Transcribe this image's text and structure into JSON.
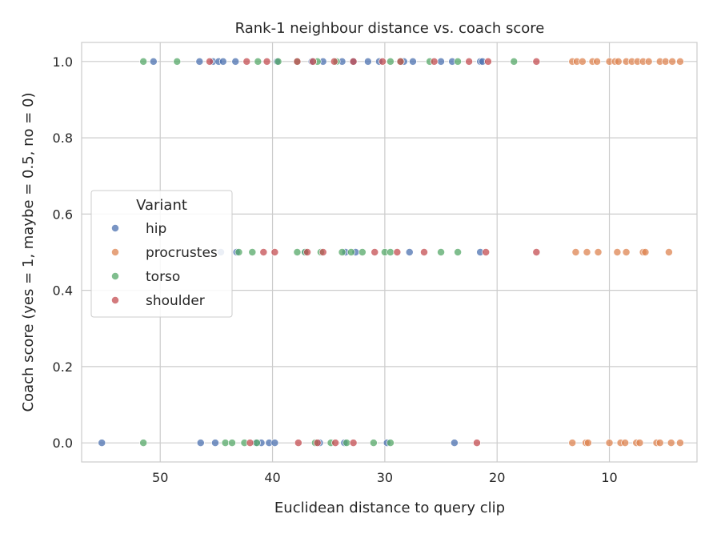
{
  "chart_data": {
    "type": "scatter",
    "title": "Rank-1 neighbour distance vs. coach score",
    "xlabel": "Euclidean distance to query clip",
    "ylabel": "Coach score  (yes = 1,  maybe = 0.5,  no = 0)",
    "x_inverted": true,
    "xlim": [
      57.0,
      2.2
    ],
    "ylim": [
      -0.05,
      1.05
    ],
    "xticks": [
      50,
      40,
      30,
      20,
      10
    ],
    "yticks": [
      0.0,
      0.2,
      0.4,
      0.6,
      0.8,
      1.0
    ],
    "ytick_labels": [
      "0.0",
      "0.2",
      "0.4",
      "0.6",
      "0.8",
      "1.0"
    ],
    "grid": true,
    "legend": {
      "title": "Variant",
      "position": "center-left"
    },
    "series": [
      {
        "name": "hip",
        "color": "#4c72b0",
        "points": [
          [
            50.6,
            1
          ],
          [
            46.5,
            1
          ],
          [
            45.3,
            1
          ],
          [
            44.8,
            1
          ],
          [
            44.4,
            1
          ],
          [
            43.3,
            1
          ],
          [
            39.6,
            1
          ],
          [
            36.5,
            1
          ],
          [
            35.5,
            1
          ],
          [
            33.8,
            1
          ],
          [
            32.8,
            1
          ],
          [
            31.5,
            1
          ],
          [
            30.5,
            1
          ],
          [
            28.3,
            1
          ],
          [
            27.5,
            1
          ],
          [
            25.0,
            1
          ],
          [
            24.0,
            1
          ],
          [
            21.5,
            1
          ],
          [
            21.3,
            1
          ],
          [
            44.6,
            0.5
          ],
          [
            43.2,
            0.5
          ],
          [
            37.1,
            0.5
          ],
          [
            33.5,
            0.5
          ],
          [
            32.6,
            0.5
          ],
          [
            27.8,
            0.5
          ],
          [
            21.5,
            0.5
          ],
          [
            55.2,
            0
          ],
          [
            46.4,
            0
          ],
          [
            45.1,
            0
          ],
          [
            41.5,
            0
          ],
          [
            41.0,
            0
          ],
          [
            40.3,
            0
          ],
          [
            39.8,
            0
          ],
          [
            35.8,
            0
          ],
          [
            33.6,
            0
          ],
          [
            29.8,
            0
          ],
          [
            23.8,
            0
          ]
        ]
      },
      {
        "name": "procrustes",
        "color": "#dd8452",
        "points": [
          [
            13.3,
            1
          ],
          [
            12.9,
            1
          ],
          [
            12.4,
            1
          ],
          [
            11.5,
            1
          ],
          [
            11.1,
            1
          ],
          [
            10.0,
            1
          ],
          [
            9.5,
            1
          ],
          [
            9.2,
            1
          ],
          [
            8.5,
            1
          ],
          [
            8.0,
            1
          ],
          [
            7.5,
            1
          ],
          [
            7.0,
            1
          ],
          [
            6.5,
            1
          ],
          [
            5.5,
            1
          ],
          [
            5.0,
            1
          ],
          [
            4.4,
            1
          ],
          [
            3.7,
            1
          ],
          [
            13.0,
            0.5
          ],
          [
            12.0,
            0.5
          ],
          [
            11.0,
            0.5
          ],
          [
            9.3,
            0.5
          ],
          [
            8.5,
            0.5
          ],
          [
            7.0,
            0.5
          ],
          [
            6.8,
            0.5
          ],
          [
            4.7,
            0.5
          ],
          [
            13.3,
            0
          ],
          [
            12.1,
            0
          ],
          [
            11.9,
            0
          ],
          [
            10.0,
            0
          ],
          [
            9.0,
            0
          ],
          [
            8.6,
            0
          ],
          [
            7.6,
            0
          ],
          [
            7.3,
            0
          ],
          [
            5.8,
            0
          ],
          [
            5.5,
            0
          ],
          [
            4.5,
            0
          ],
          [
            3.7,
            0
          ]
        ]
      },
      {
        "name": "torso",
        "color": "#55a868",
        "points": [
          [
            51.5,
            1
          ],
          [
            48.5,
            1
          ],
          [
            41.3,
            1
          ],
          [
            39.5,
            1
          ],
          [
            37.8,
            1
          ],
          [
            36.0,
            1
          ],
          [
            34.3,
            1
          ],
          [
            29.5,
            1
          ],
          [
            28.6,
            1
          ],
          [
            26.0,
            1
          ],
          [
            23.5,
            1
          ],
          [
            18.5,
            1
          ],
          [
            43.0,
            0.5
          ],
          [
            41.8,
            0.5
          ],
          [
            37.8,
            0.5
          ],
          [
            37.1,
            0.5
          ],
          [
            35.7,
            0.5
          ],
          [
            33.8,
            0.5
          ],
          [
            33.0,
            0.5
          ],
          [
            32.0,
            0.5
          ],
          [
            30.0,
            0.5
          ],
          [
            29.5,
            0.5
          ],
          [
            25.0,
            0.5
          ],
          [
            23.5,
            0.5
          ],
          [
            51.5,
            0
          ],
          [
            44.2,
            0
          ],
          [
            43.6,
            0
          ],
          [
            42.5,
            0
          ],
          [
            41.4,
            0
          ],
          [
            36.2,
            0
          ],
          [
            34.8,
            0
          ],
          [
            33.4,
            0
          ],
          [
            31.0,
            0
          ],
          [
            29.5,
            0
          ]
        ]
      },
      {
        "name": "shoulder",
        "color": "#c44e52",
        "points": [
          [
            45.6,
            1
          ],
          [
            42.3,
            1
          ],
          [
            40.5,
            1
          ],
          [
            37.8,
            1
          ],
          [
            36.4,
            1
          ],
          [
            34.5,
            1
          ],
          [
            32.8,
            1
          ],
          [
            30.2,
            1
          ],
          [
            28.6,
            1
          ],
          [
            25.6,
            1
          ],
          [
            22.5,
            1
          ],
          [
            20.8,
            1
          ],
          [
            16.5,
            1
          ],
          [
            40.8,
            0.5
          ],
          [
            39.8,
            0.5
          ],
          [
            36.9,
            0.5
          ],
          [
            35.5,
            0.5
          ],
          [
            30.9,
            0.5
          ],
          [
            28.9,
            0.5
          ],
          [
            26.5,
            0.5
          ],
          [
            21.0,
            0.5
          ],
          [
            16.5,
            0.5
          ],
          [
            42.0,
            0
          ],
          [
            37.7,
            0
          ],
          [
            36.0,
            0
          ],
          [
            34.4,
            0
          ],
          [
            32.8,
            0
          ],
          [
            21.8,
            0
          ]
        ]
      }
    ]
  }
}
